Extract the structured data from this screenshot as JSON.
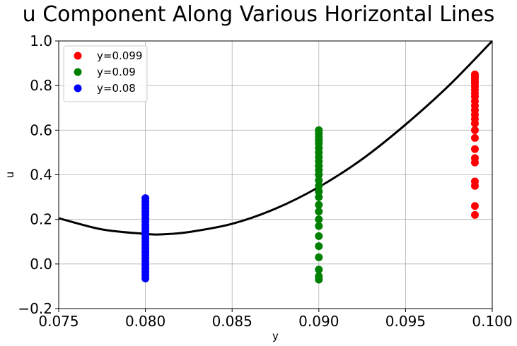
{
  "chart_data": {
    "type": "scatter",
    "title": "u Component Along Various Horizontal Lines",
    "xlabel": "y",
    "ylabel": "u",
    "xlim": [
      0.075,
      0.1
    ],
    "ylim": [
      -0.2,
      1.0
    ],
    "x_ticks": [
      0.075,
      0.08,
      0.085,
      0.09,
      0.095,
      0.1
    ],
    "x_tick_labels": [
      "0.075",
      "0.080",
      "0.085",
      "0.090",
      "0.095",
      "0.100"
    ],
    "y_ticks": [
      -0.2,
      0.0,
      0.2,
      0.4,
      0.6,
      0.8,
      1.0
    ],
    "y_tick_labels": [
      "−0.2",
      "0.0",
      "0.2",
      "0.4",
      "0.6",
      "0.8",
      "1.0"
    ],
    "grid": true,
    "legend_position": "top-left",
    "series": [
      {
        "name": "y=0.099",
        "color": "#ff0000",
        "x": 0.099,
        "values": [
          0.22,
          0.26,
          0.35,
          0.37,
          0.455,
          0.475,
          0.515,
          0.565,
          0.6,
          0.63,
          0.65,
          0.67,
          0.69,
          0.71,
          0.73,
          0.75,
          0.765,
          0.78,
          0.795,
          0.81,
          0.82,
          0.83,
          0.84,
          0.85
        ]
      },
      {
        "name": "y=0.09",
        "color": "#008000",
        "x": 0.09,
        "values": [
          -0.07,
          -0.055,
          -0.025,
          0.03,
          0.08,
          0.125,
          0.17,
          0.2,
          0.235,
          0.265,
          0.3,
          0.325,
          0.35,
          0.375,
          0.4,
          0.42,
          0.44,
          0.46,
          0.48,
          0.5,
          0.52,
          0.54,
          0.555,
          0.57,
          0.585,
          0.6
        ]
      },
      {
        "name": "y=0.08",
        "color": "#0000ff",
        "x": 0.08,
        "values": [
          -0.065,
          -0.05,
          -0.035,
          -0.02,
          -0.005,
          0.01,
          0.025,
          0.04,
          0.055,
          0.07,
          0.085,
          0.1,
          0.115,
          0.13,
          0.145,
          0.16,
          0.175,
          0.19,
          0.205,
          0.22,
          0.235,
          0.25,
          0.265,
          0.28,
          0.295
        ]
      }
    ],
    "curve": {
      "color": "#000000",
      "x": [
        0.075,
        0.0775,
        0.08,
        0.081,
        0.0825,
        0.085,
        0.0875,
        0.09,
        0.0925,
        0.095,
        0.0975,
        0.1
      ],
      "y": [
        0.205,
        0.155,
        0.135,
        0.133,
        0.143,
        0.18,
        0.248,
        0.345,
        0.47,
        0.625,
        0.8,
        1.0
      ]
    }
  }
}
